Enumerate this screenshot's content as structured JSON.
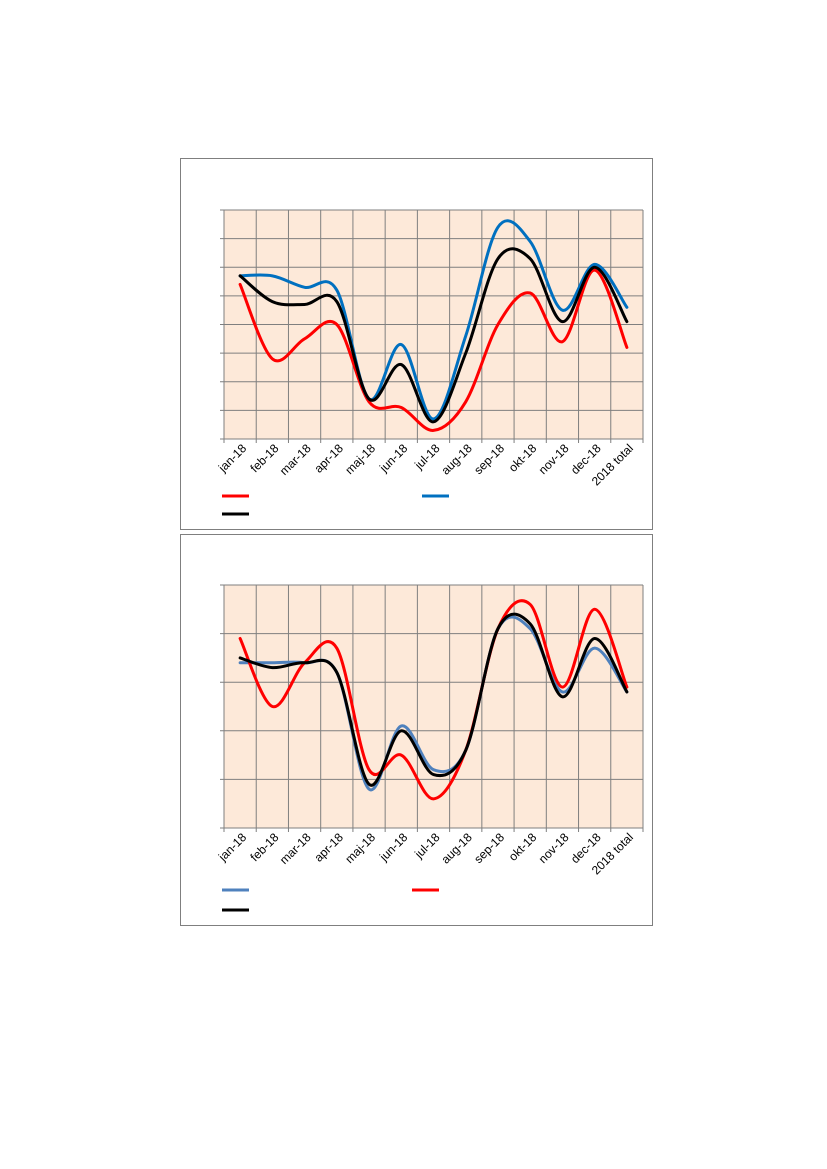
{
  "colors": {
    "plot_bg": "#fde9d9",
    "grid": "#7f7f7f"
  },
  "chart_data": [
    {
      "type": "line",
      "smooth": true,
      "title": "",
      "xlabel": "",
      "ylabel": "",
      "grid": true,
      "legend_position": "bottom",
      "ylim": [
        0,
        8
      ],
      "categories": [
        "jan-18",
        "feb-18",
        "mar-18",
        "apr-18",
        "maj-18",
        "jun-18",
        "jul-18",
        "aug-18",
        "sep-18",
        "okt-18",
        "nov-18",
        "dec-18",
        "2018 total"
      ],
      "series": [
        {
          "color": "#ff0000",
          "values": [
            5.4,
            2.8,
            3.5,
            4.0,
            1.3,
            1.1,
            0.3,
            1.3,
            4.0,
            5.1,
            3.4,
            5.9,
            3.2
          ]
        },
        {
          "color": "#0070c0",
          "values": [
            5.7,
            5.7,
            5.3,
            5.2,
            1.4,
            3.3,
            0.7,
            3.6,
            7.4,
            6.9,
            4.5,
            6.1,
            4.6
          ]
        },
        {
          "color": "#000000",
          "values": [
            5.7,
            4.8,
            4.7,
            4.8,
            1.4,
            2.6,
            0.6,
            3.0,
            6.3,
            6.3,
            4.1,
            6.0,
            4.1
          ]
        }
      ]
    },
    {
      "type": "line",
      "smooth": true,
      "title": "",
      "xlabel": "",
      "ylabel": "",
      "grid": true,
      "legend_position": "bottom",
      "ylim": [
        0,
        5
      ],
      "categories": [
        "jan-18",
        "feb-18",
        "mar-18",
        "apr-18",
        "maj-18",
        "jun-18",
        "jul-18",
        "aug-18",
        "sep-18",
        "okt-18",
        "nov-18",
        "dec-18",
        "2018 total"
      ],
      "series": [
        {
          "color": "#4f81bd",
          "values": [
            3.4,
            3.4,
            3.4,
            3.2,
            0.8,
            2.1,
            1.2,
            1.6,
            4.1,
            4.1,
            2.8,
            3.7,
            2.8
          ]
        },
        {
          "color": "#ff0000",
          "values": [
            3.9,
            2.5,
            3.4,
            3.7,
            1.2,
            1.5,
            0.6,
            1.6,
            4.1,
            4.6,
            2.9,
            4.5,
            2.9
          ]
        },
        {
          "color": "#000000",
          "values": [
            3.5,
            3.3,
            3.4,
            3.2,
            0.9,
            2.0,
            1.1,
            1.6,
            4.1,
            4.2,
            2.7,
            3.9,
            2.8
          ]
        }
      ]
    }
  ]
}
